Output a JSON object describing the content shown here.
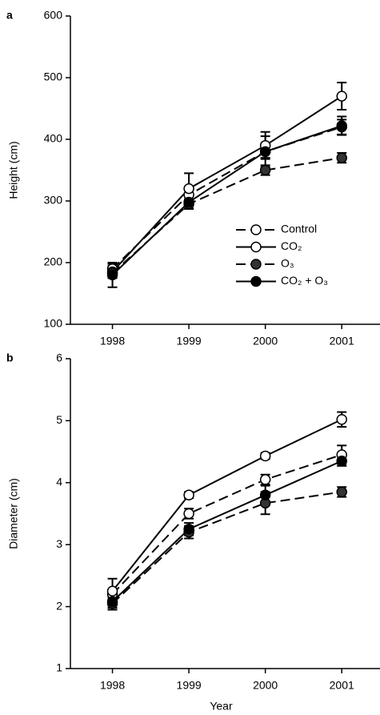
{
  "chart_data": [
    {
      "type": "line",
      "panel_label": "a",
      "ylabel": "Height (cm)",
      "x": [
        1998,
        1999,
        2000,
        2001
      ],
      "xlim": [
        1997.45,
        2001.5
      ],
      "xticks": [
        1998,
        1999,
        2000,
        2001
      ],
      "ylim": [
        100,
        600
      ],
      "yticks": [
        100,
        200,
        300,
        400,
        500,
        600
      ],
      "legend": "lower right",
      "series": [
        {
          "name": "Control",
          "color": "#000000",
          "marker_fill": "#ffffff",
          "dashed": true,
          "values": [
            190,
            310,
            380,
            420
          ],
          "errors": [
            8,
            10,
            10,
            12
          ]
        },
        {
          "name": "CO₂",
          "color": "#000000",
          "marker_fill": "#ffffff",
          "dashed": false,
          "values": [
            185,
            320,
            390,
            470
          ],
          "errors": [
            10,
            25,
            22,
            22
          ]
        },
        {
          "name": "O₃",
          "color": "#000000",
          "marker_fill": "#333333",
          "dashed": true,
          "values": [
            183,
            295,
            350,
            370
          ],
          "errors": [
            8,
            8,
            8,
            8
          ]
        },
        {
          "name": "CO₂ + O₃",
          "color": "#000000",
          "marker_fill": "#000000",
          "dashed": false,
          "values": [
            180,
            298,
            380,
            422
          ],
          "errors": [
            20,
            10,
            25,
            15
          ]
        }
      ]
    },
    {
      "type": "line",
      "panel_label": "b",
      "ylabel": "Diameter (cm)",
      "xlabel": "Year",
      "x": [
        1998,
        1999,
        2000,
        2001
      ],
      "xlim": [
        1997.45,
        2001.5
      ],
      "xticks": [
        1998,
        1999,
        2000,
        2001
      ],
      "ylim": [
        1,
        6
      ],
      "yticks": [
        1,
        2,
        3,
        4,
        5,
        6
      ],
      "series": [
        {
          "name": "Control",
          "color": "#000000",
          "marker_fill": "#ffffff",
          "dashed": true,
          "values": [
            2.2,
            3.5,
            4.05,
            4.45
          ],
          "errors": [
            0.08,
            0.08,
            0.08,
            0.15
          ]
        },
        {
          "name": "CO₂",
          "color": "#000000",
          "marker_fill": "#ffffff",
          "dashed": false,
          "values": [
            2.25,
            3.8,
            4.43,
            5.02
          ],
          "errors": [
            0.2,
            0.05,
            0.05,
            0.12
          ]
        },
        {
          "name": "O₃",
          "color": "#000000",
          "marker_fill": "#333333",
          "dashed": true,
          "values": [
            2.05,
            3.2,
            3.67,
            3.85
          ],
          "errors": [
            0.1,
            0.1,
            0.18,
            0.08
          ]
        },
        {
          "name": "CO₂ + O₃",
          "color": "#000000",
          "marker_fill": "#000000",
          "dashed": false,
          "values": [
            2.08,
            3.25,
            3.8,
            4.35
          ],
          "errors": [
            0.1,
            0.1,
            0.15,
            0.08
          ]
        }
      ]
    }
  ]
}
